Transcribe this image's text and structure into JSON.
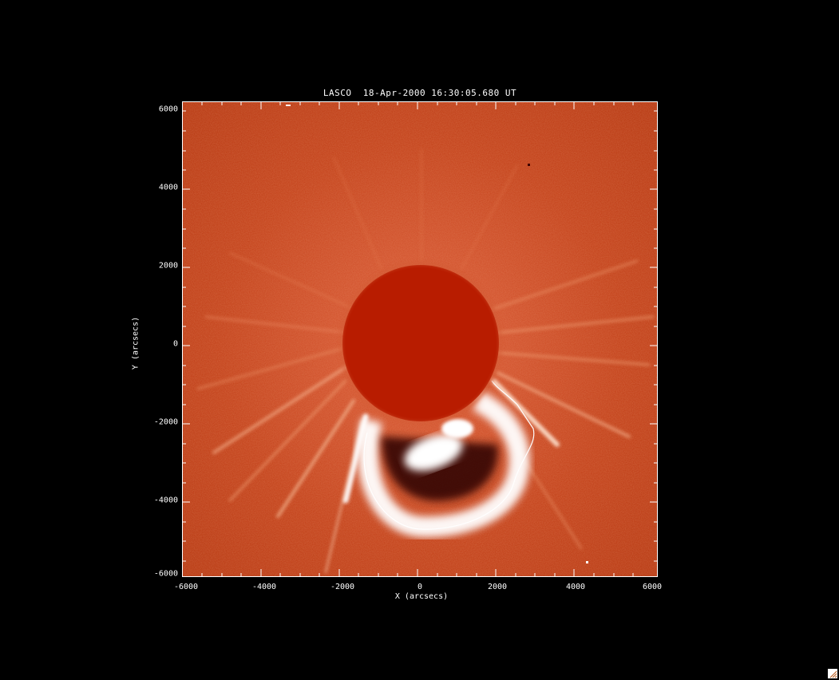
{
  "title": "LASCO  18-Apr-2000 16:30:05.680 UT",
  "xlabel": "X (arcsecs)",
  "ylabel": "Y (arcsecs)",
  "x_ticks": [
    "-6000",
    "-4000",
    "-2000",
    "0",
    "2000",
    "4000",
    "6000"
  ],
  "y_ticks": [
    "6000",
    "4000",
    "2000",
    "0",
    "-2000",
    "-4000",
    "-6000"
  ],
  "colors": {
    "background": "#000000",
    "corona": "#c23a12",
    "occulter": "#b81c00",
    "cme_bright": "#ffffff",
    "axes": "#ffffff"
  }
}
